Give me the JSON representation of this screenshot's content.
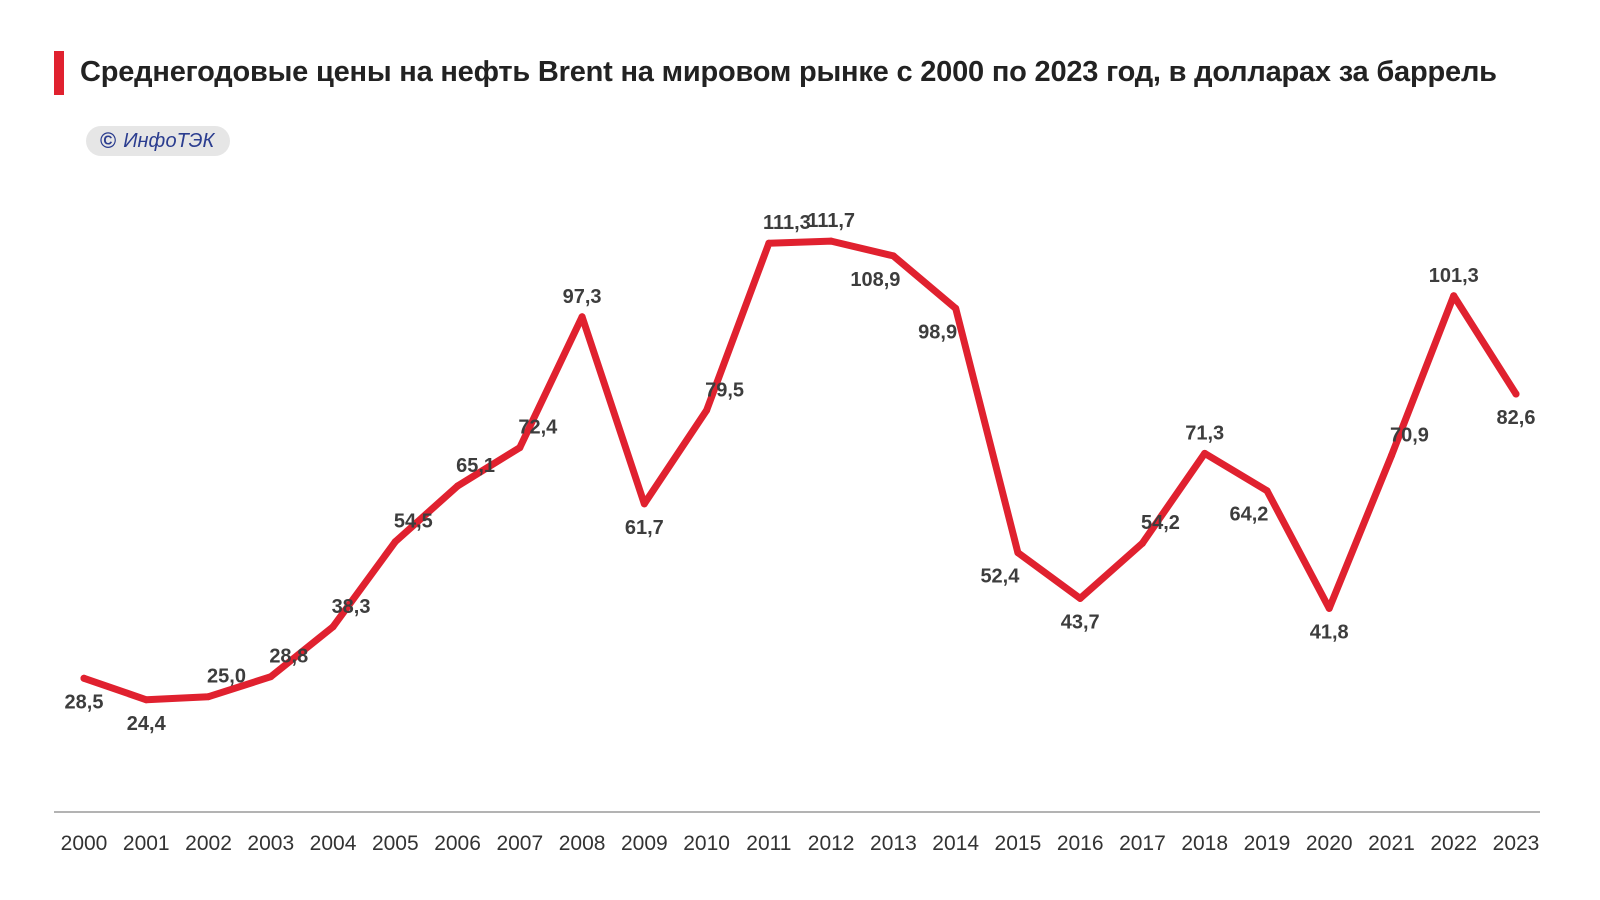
{
  "header": {
    "title": "Среднегодовые цены на нефть Brent на мировом рынке с 2000 по 2023 год, в долларах за баррель",
    "accent_color": "#e0212f"
  },
  "badge": {
    "icon": "copyright-icon",
    "symbol": "©",
    "text": "ИнфоТЭК"
  },
  "chart_data": {
    "type": "line",
    "title": "Среднегодовые цены на нефть Brent на мировом рынке с 2000 по 2023 год, в долларах за баррель",
    "xlabel": "",
    "ylabel": "",
    "grid": false,
    "ylim": [
      0,
      130
    ],
    "line_color": "#e0212f",
    "categories": [
      "2000",
      "2001",
      "2002",
      "2003",
      "2004",
      "2005",
      "2006",
      "2007",
      "2008",
      "2009",
      "2010",
      "2011",
      "2012",
      "2013",
      "2014",
      "2015",
      "2016",
      "2017",
      "2018",
      "2019",
      "2020",
      "2021",
      "2022",
      "2023"
    ],
    "series": [
      {
        "name": "Brent",
        "values": [
          28.5,
          24.4,
          25.0,
          28.8,
          38.3,
          54.5,
          65.1,
          72.4,
          97.3,
          61.7,
          79.5,
          111.3,
          111.7,
          108.9,
          98.9,
          52.4,
          43.7,
          54.2,
          71.3,
          64.2,
          41.8,
          70.9,
          101.3,
          82.6
        ],
        "labels": [
          "28,5",
          "24,4",
          "25,0",
          "28,8",
          "38,3",
          "54,5",
          "65,1",
          "72,4",
          "97,3",
          "61,7",
          "79,5",
          "111,3",
          "111,7",
          "108,9",
          "98,9",
          "52,4",
          "43,7",
          "54,2",
          "71,3",
          "64,2",
          "41,8",
          "70,9",
          "101,3",
          "82,6"
        ]
      }
    ]
  }
}
